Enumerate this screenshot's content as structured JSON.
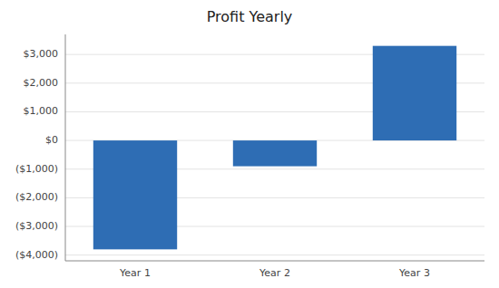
{
  "chart_data": {
    "type": "bar",
    "title": "Profit Yearly",
    "categories": [
      "Year 1",
      "Year 2",
      "Year 3"
    ],
    "values": [
      -3800,
      -900,
      3300
    ],
    "color": "#2E6DB4",
    "ylim": [
      -4200,
      3700
    ],
    "yticks": [
      {
        "value": -4000,
        "label": "($4,000)"
      },
      {
        "value": -3000,
        "label": "($3,000)"
      },
      {
        "value": -2000,
        "label": "($2,000)"
      },
      {
        "value": -1000,
        "label": "($1,000)"
      },
      {
        "value": 0,
        "label": "$0"
      },
      {
        "value": 1000,
        "label": "$1,000"
      },
      {
        "value": 2000,
        "label": "$2,000"
      },
      {
        "value": 3000,
        "label": "$3,000"
      }
    ],
    "grid": true
  }
}
